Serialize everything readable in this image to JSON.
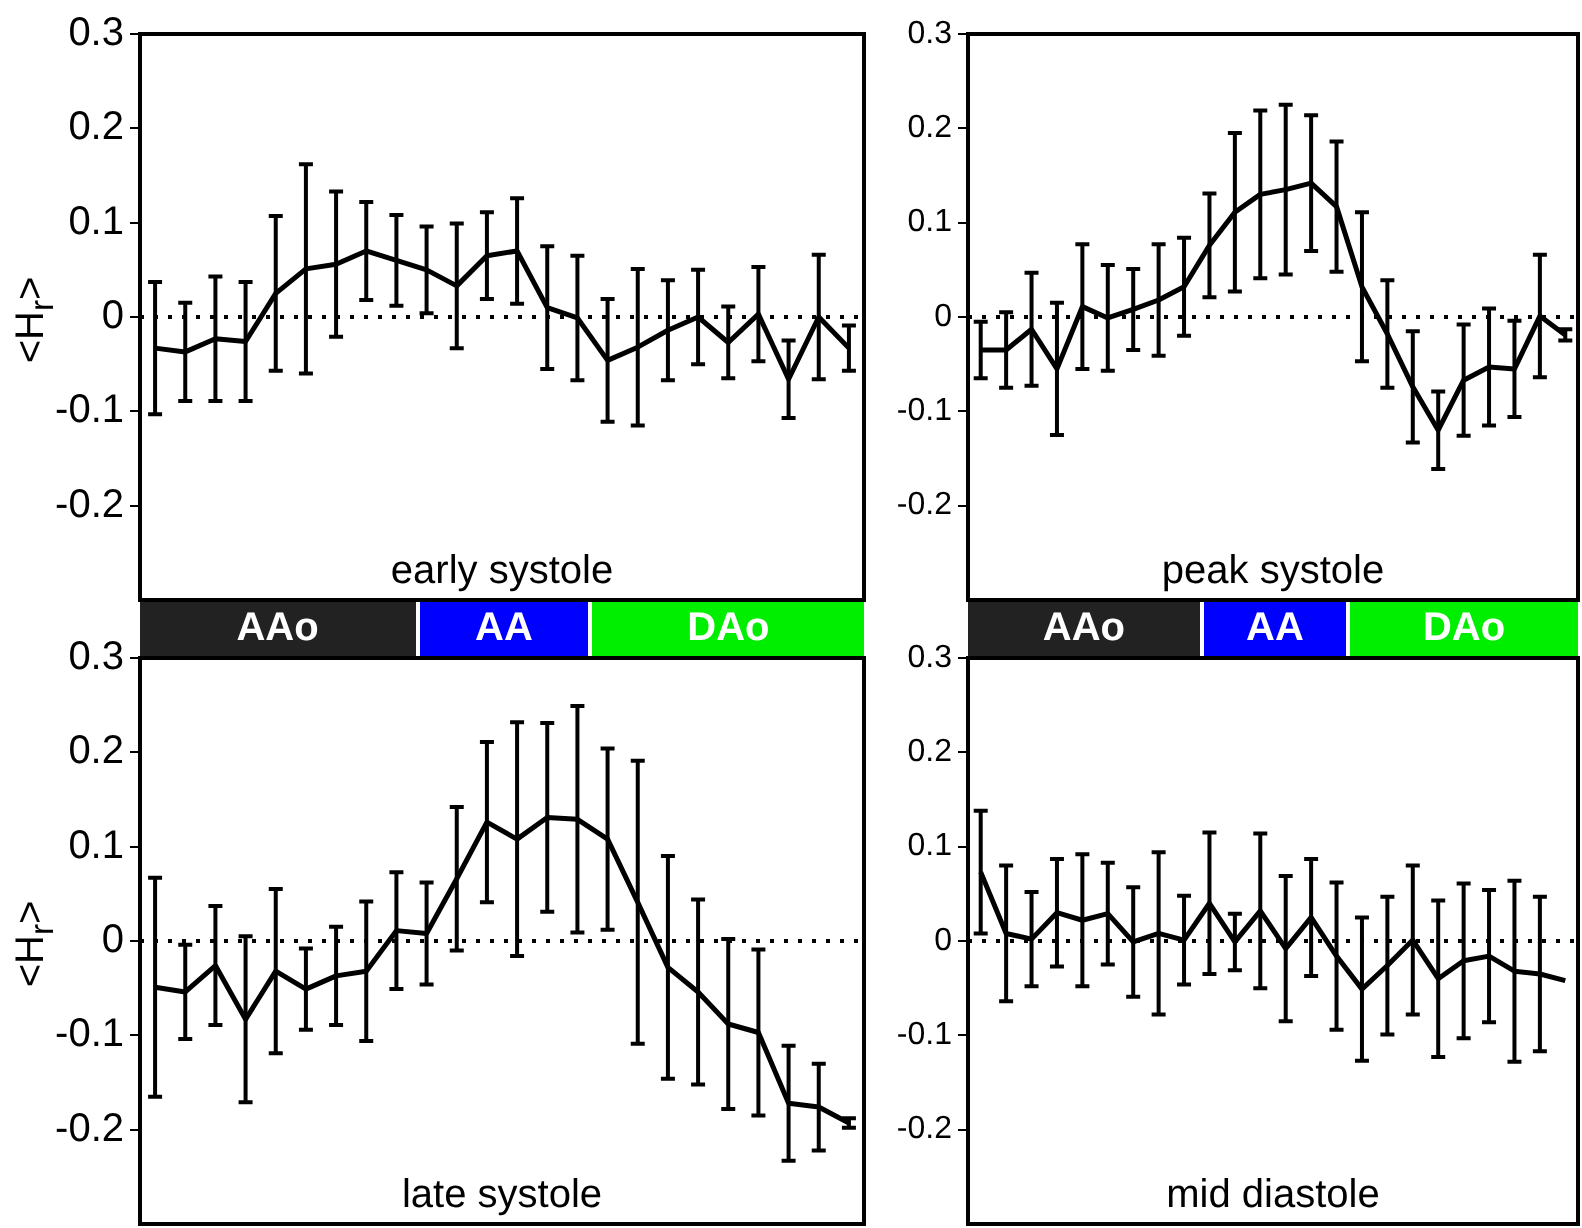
{
  "chart_data": [
    {
      "type": "line",
      "title": "early systole",
      "ylabel": "<H$_{r}$>",
      "categories": [
        null,
        null,
        null,
        null,
        null,
        null,
        null,
        null,
        null,
        null,
        null,
        null,
        null,
        null,
        null,
        null,
        null,
        null,
        null,
        null,
        null,
        null,
        null,
        null
      ],
      "ylim": [
        -0.3,
        0.3
      ],
      "yticks": [
        -0.2,
        -0.1,
        0,
        0.1,
        0.2,
        0.3
      ],
      "tick_labels": "y",
      "ref_lines": [
        {
          "axis": "y",
          "value": 0,
          "line_style": "dotted"
        }
      ],
      "series": [
        {
          "color": "#000000",
          "values": [
            -0.033,
            -0.037,
            -0.023,
            -0.026,
            0.025,
            0.051,
            0.056,
            0.07,
            0.06,
            0.05,
            0.033,
            0.065,
            0.07,
            0.01,
            -0.001,
            -0.046,
            -0.032,
            -0.014,
            0,
            -0.027,
            0.003,
            -0.066,
            0,
            -0.033
          ],
          "errors": [
            0.07,
            0.052,
            0.066,
            0.063,
            0.082,
            0.111,
            0.077,
            0.052,
            0.048,
            0.046,
            0.066,
            0.046,
            0.056,
            0.065,
            0.066,
            0.065,
            0.083,
            0.053,
            0.05,
            0.038,
            0.05,
            0.041,
            0.066,
            0.024
          ]
        }
      ]
    },
    {
      "type": "line",
      "title": "peak systole",
      "categories": [
        null,
        null,
        null,
        null,
        null,
        null,
        null,
        null,
        null,
        null,
        null,
        null,
        null,
        null,
        null,
        null,
        null,
        null,
        null,
        null,
        null,
        null,
        null,
        null
      ],
      "ylim": [
        -0.3,
        0.3
      ],
      "yticks": [
        -0.2,
        -0.1,
        0,
        0.1,
        0.2,
        0.3
      ],
      "tick_labels": "y",
      "ref_lines": [
        {
          "axis": "y",
          "value": 0,
          "line_style": "dotted"
        }
      ],
      "series": [
        {
          "color": "#000000",
          "values": [
            -0.035,
            -0.035,
            -0.013,
            -0.055,
            0.011,
            -0.001,
            0.008,
            0.018,
            0.032,
            0.076,
            0.111,
            0.13,
            0.135,
            0.142,
            0.117,
            0.032,
            -0.018,
            -0.074,
            -0.12,
            -0.067,
            -0.053,
            -0.055,
            0.001,
            -0.019
          ],
          "errors": [
            0.03,
            0.04,
            0.06,
            0.07,
            0.066,
            0.056,
            0.043,
            0.059,
            0.052,
            0.055,
            0.084,
            0.089,
            0.09,
            0.072,
            0.069,
            0.079,
            0.057,
            0.059,
            0.041,
            0.059,
            0.062,
            0.051,
            0.065,
            0.006
          ]
        }
      ]
    },
    {
      "type": "line",
      "title": "late systole",
      "ylabel": "<H$_{r}$>",
      "annotations": [
        "AAo",
        "AA",
        "DAo"
      ],
      "categories": [
        null,
        null,
        null,
        null,
        null,
        null,
        null,
        null,
        null,
        null,
        null,
        null,
        null,
        null,
        null,
        null,
        null,
        null,
        null,
        null,
        null,
        null,
        null,
        null
      ],
      "ylim": [
        -0.3,
        0.3
      ],
      "yticks": [
        -0.2,
        -0.1,
        0,
        0.1,
        0.2,
        0.3
      ],
      "tick_labels": "y",
      "ref_lines": [
        {
          "axis": "y",
          "value": 0,
          "line_style": "dotted"
        }
      ],
      "series": [
        {
          "color": "#000000",
          "values": [
            -0.049,
            -0.054,
            -0.026,
            -0.083,
            -0.032,
            -0.051,
            -0.037,
            -0.032,
            0.011,
            0.008,
            0.066,
            0.126,
            0.108,
            0.131,
            0.129,
            0.108,
            0.041,
            -0.028,
            -0.054,
            -0.088,
            -0.097,
            -0.172,
            -0.176,
            -0.193
          ],
          "errors": [
            0.116,
            0.05,
            0.063,
            0.088,
            0.087,
            0.043,
            0.052,
            0.074,
            0.062,
            0.054,
            0.076,
            0.085,
            0.124,
            0.1,
            0.12,
            0.096,
            0.15,
            0.118,
            0.098,
            0.09,
            0.088,
            0.061,
            0.046,
            0.005
          ]
        }
      ]
    },
    {
      "type": "line",
      "title": "mid diastole",
      "annotations": [
        "AAo",
        "AA",
        "DAo"
      ],
      "categories": [
        null,
        null,
        null,
        null,
        null,
        null,
        null,
        null,
        null,
        null,
        null,
        null,
        null,
        null,
        null,
        null,
        null,
        null,
        null,
        null,
        null,
        null,
        null,
        null
      ],
      "ylim": [
        -0.3,
        0.3
      ],
      "yticks": [
        -0.2,
        -0.1,
        0,
        0.1,
        0.2,
        0.3
      ],
      "tick_labels": "y",
      "ref_lines": [
        {
          "axis": "y",
          "value": 0,
          "line_style": "dotted"
        }
      ],
      "series": [
        {
          "color": "#000000",
          "values": [
            0.073,
            0.008,
            0.002,
            0.03,
            0.022,
            0.029,
            -0.001,
            0.008,
            0.001,
            0.04,
            -0.001,
            0.032,
            -0.008,
            0.025,
            -0.016,
            -0.051,
            -0.026,
            0.001,
            -0.04,
            -0.021,
            -0.016,
            -0.032,
            -0.035,
            -0.042
          ],
          "errors": [
            0.065,
            0.072,
            0.05,
            0.057,
            0.07,
            0.054,
            0.058,
            0.086,
            0.047,
            0.075,
            0.03,
            0.082,
            0.077,
            0.062,
            0.078,
            0.076,
            0.073,
            0.079,
            0.083,
            0.082,
            0.07,
            0.096,
            0.082,
            null
          ]
        }
      ]
    }
  ]
}
